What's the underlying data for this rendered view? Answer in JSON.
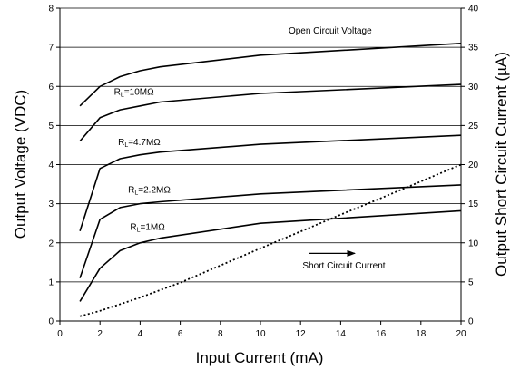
{
  "chart_data": {
    "type": "line",
    "xlabel": "Input Current (mA)",
    "ylabel": "Output Voltage (VDC)",
    "y2label": "Output Short Circuit Current (µA)",
    "xlim": [
      0,
      20
    ],
    "ylim": [
      0,
      8
    ],
    "y2lim": [
      0,
      40
    ],
    "x_ticks": [
      "0",
      "2",
      "4",
      "6",
      "8",
      "10",
      "12",
      "14",
      "16",
      "18",
      "20"
    ],
    "y_ticks": [
      "0",
      "1",
      "2",
      "3",
      "4",
      "5",
      "6",
      "7",
      "8"
    ],
    "y2_ticks": [
      "0",
      "5",
      "10",
      "15",
      "20",
      "25",
      "30",
      "35",
      "40"
    ],
    "grid": "horizontal",
    "series": [
      {
        "name": "Open Circuit Voltage",
        "axis": "left",
        "style": "solid",
        "x": [
          1,
          2,
          3,
          4,
          5,
          10,
          20
        ],
        "y": [
          5.5,
          6.0,
          6.25,
          6.4,
          6.5,
          6.8,
          7.1
        ]
      },
      {
        "name": "RL=10MΩ",
        "axis": "left",
        "style": "solid",
        "x": [
          1,
          2,
          3,
          4,
          5,
          10,
          20
        ],
        "y": [
          4.6,
          5.2,
          5.4,
          5.5,
          5.6,
          5.82,
          6.05
        ]
      },
      {
        "name": "RL=4.7MΩ",
        "axis": "left",
        "style": "solid",
        "x": [
          1,
          2,
          3,
          4,
          5,
          10,
          20
        ],
        "y": [
          2.3,
          3.9,
          4.15,
          4.25,
          4.32,
          4.52,
          4.75
        ]
      },
      {
        "name": "RL=2.2MΩ",
        "axis": "left",
        "style": "solid",
        "x": [
          1,
          2,
          3,
          4,
          5,
          10,
          20
        ],
        "y": [
          1.1,
          2.6,
          2.9,
          3.0,
          3.05,
          3.25,
          3.48
        ]
      },
      {
        "name": "RL=1MΩ",
        "axis": "left",
        "style": "solid",
        "x": [
          1,
          2,
          3,
          4,
          5,
          10,
          20
        ],
        "y": [
          0.5,
          1.35,
          1.8,
          2.0,
          2.12,
          2.5,
          2.82
        ]
      },
      {
        "name": "Short Circuit Current",
        "axis": "right",
        "style": "dotted",
        "x": [
          1,
          2,
          4,
          6,
          10,
          14,
          16,
          20
        ],
        "y": [
          0.6,
          1.3,
          3.0,
          4.9,
          9.3,
          13.6,
          15.7,
          20.0
        ]
      }
    ],
    "annotations": [
      {
        "text": "Open Circuit Voltage",
        "x": 11.4,
        "y": 7.35
      },
      {
        "main": "R",
        "sub": "L",
        "rest": "=10MΩ",
        "x": 2.7,
        "y": 5.78
      },
      {
        "main": "R",
        "sub": "L",
        "rest": "=4.7MΩ",
        "x": 2.9,
        "y": 4.5
      },
      {
        "main": "R",
        "sub": "L",
        "rest": "=2.2MΩ",
        "x": 3.4,
        "y": 3.28
      },
      {
        "main": "R",
        "sub": "L",
        "rest": "=1MΩ",
        "x": 3.5,
        "y": 2.33
      },
      {
        "text": "Short Circuit Current",
        "x": 12.1,
        "y": 1.35
      }
    ],
    "arrow": {
      "from_x": 12.4,
      "to_x": 14.7,
      "y": 1.73
    }
  }
}
